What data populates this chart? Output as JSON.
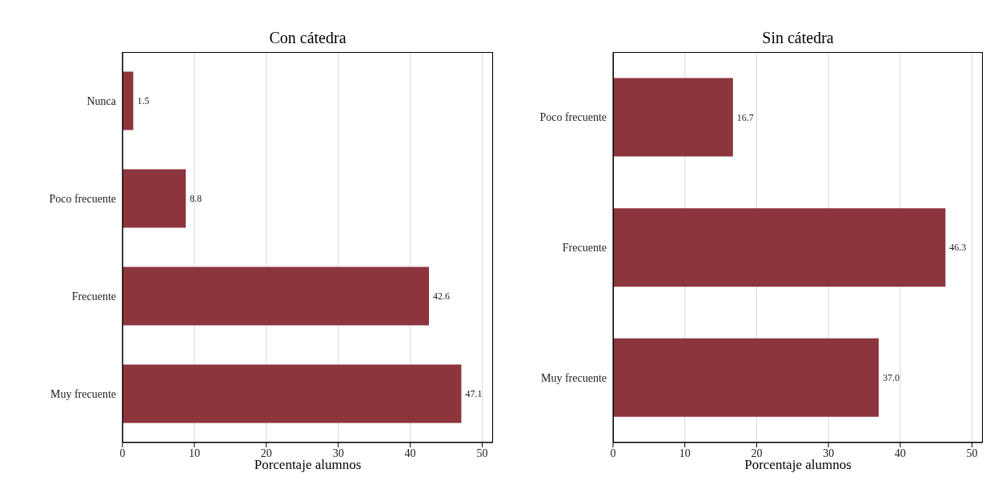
{
  "chart_data": [
    {
      "type": "bar",
      "orientation": "horizontal",
      "title": "Con cátedra",
      "xlabel": "Porcentaje alumnos",
      "categories": [
        "Nunca",
        "Poco frecuente",
        "Frecuente",
        "Muy frecuente"
      ],
      "values": [
        1.5,
        8.8,
        42.6,
        47.1
      ],
      "value_labels": [
        "1.5",
        "8.8",
        "42.6",
        "47.1"
      ],
      "color": "#8c353d",
      "xlim": [
        0,
        51.5
      ],
      "xticks": [
        0,
        10,
        20,
        30,
        40,
        50
      ],
      "grid": "x"
    },
    {
      "type": "bar",
      "orientation": "horizontal",
      "title": "Sin cátedra",
      "xlabel": "Porcentaje alumnos",
      "categories": [
        "Poco frecuente",
        "Frecuente",
        "Muy frecuente"
      ],
      "values": [
        16.7,
        46.3,
        37.0
      ],
      "value_labels": [
        "16.7",
        "46.3",
        "37.0"
      ],
      "color": "#8c353d",
      "xlim": [
        0,
        51.5
      ],
      "xticks": [
        0,
        10,
        20,
        30,
        40,
        50
      ],
      "grid": "x"
    }
  ]
}
